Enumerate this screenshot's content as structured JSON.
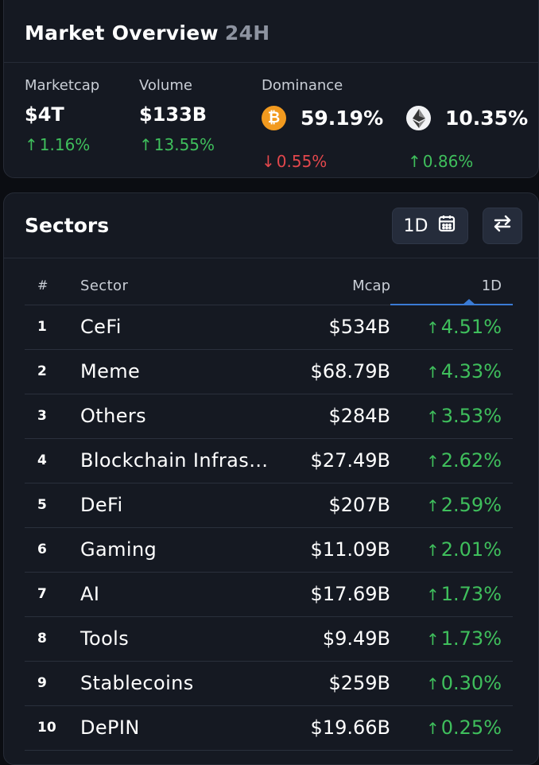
{
  "overview": {
    "title": "Market Overview",
    "period": "24H",
    "marketcap": {
      "label": "Marketcap",
      "value": "$4T",
      "change": "1.16%",
      "direction": "up"
    },
    "volume": {
      "label": "Volume",
      "value": "$133B",
      "change": "13.55%",
      "direction": "up"
    },
    "dominance": {
      "label": "Dominance",
      "btc": {
        "icon": "bitcoin-icon",
        "symbol": "₿",
        "value": "59.19%",
        "change": "0.55%",
        "direction": "down"
      },
      "eth": {
        "icon": "ethereum-icon",
        "value": "10.35%",
        "change": "0.86%",
        "direction": "up"
      }
    }
  },
  "sectors": {
    "title": "Sectors",
    "period_button": "1D",
    "columns": {
      "rank": "#",
      "sector": "Sector",
      "mcap": "Mcap",
      "change": "1D"
    },
    "rows": [
      {
        "rank": "1",
        "name": "CeFi",
        "mcap": "$534B",
        "change": "4.51%"
      },
      {
        "rank": "2",
        "name": "Meme",
        "mcap": "$68.79B",
        "change": "4.33%"
      },
      {
        "rank": "3",
        "name": "Others",
        "mcap": "$284B",
        "change": "3.53%"
      },
      {
        "rank": "4",
        "name": "Blockchain Infras…",
        "mcap": "$27.49B",
        "change": "2.62%"
      },
      {
        "rank": "5",
        "name": "DeFi",
        "mcap": "$207B",
        "change": "2.59%"
      },
      {
        "rank": "6",
        "name": "Gaming",
        "mcap": "$11.09B",
        "change": "2.01%"
      },
      {
        "rank": "7",
        "name": "AI",
        "mcap": "$17.69B",
        "change": "1.73%"
      },
      {
        "rank": "8",
        "name": "Tools",
        "mcap": "$9.49B",
        "change": "1.73%"
      },
      {
        "rank": "9",
        "name": "Stablecoins",
        "mcap": "$259B",
        "change": "0.30%"
      },
      {
        "rank": "10",
        "name": "DePIN",
        "mcap": "$19.66B",
        "change": "0.25%"
      }
    ]
  },
  "colors": {
    "up": "#3fbf5c",
    "down": "#e2474c",
    "accent": "#3a7bd5",
    "btc": "#f29a1f"
  }
}
